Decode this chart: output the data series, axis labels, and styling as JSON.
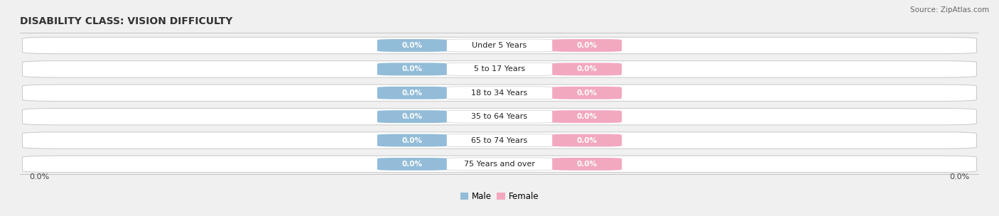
{
  "title": "DISABILITY CLASS: VISION DIFFICULTY",
  "source": "Source: ZipAtlas.com",
  "categories": [
    "Under 5 Years",
    "5 to 17 Years",
    "18 to 34 Years",
    "35 to 64 Years",
    "65 to 74 Years",
    "75 Years and over"
  ],
  "male_values": [
    0.0,
    0.0,
    0.0,
    0.0,
    0.0,
    0.0
  ],
  "female_values": [
    0.0,
    0.0,
    0.0,
    0.0,
    0.0,
    0.0
  ],
  "male_color": "#92bcd8",
  "female_color": "#f2a8bf",
  "bar_bg_color": "#e6e6e6",
  "bar_border_color": "#c8c8c8",
  "fig_bg_color": "#f0f0f0",
  "title_fontsize": 10,
  "source_fontsize": 7.5,
  "tick_fontsize": 8,
  "cat_label_fontsize": 8,
  "val_label_fontsize": 7.5,
  "fig_width": 14.06,
  "fig_height": 3.04,
  "x_axis_label_left": "0.0%",
  "x_axis_label_right": "0.0%",
  "male_legend": "Male",
  "female_legend": "Female"
}
